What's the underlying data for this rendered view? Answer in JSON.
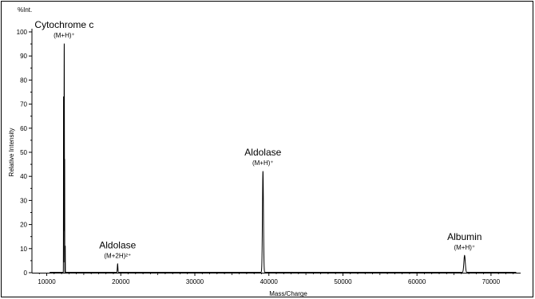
{
  "chart_data": {
    "type": "line",
    "ylabel_top": "%Int.",
    "ylabel": "Relative Intensity",
    "xlabel": "Mass/Charge",
    "xlim": [
      8000,
      74000
    ],
    "ylim": [
      0,
      100
    ],
    "x_ticks": [
      10000,
      20000,
      30000,
      40000,
      50000,
      60000,
      70000
    ],
    "y_ticks": [
      0,
      10,
      20,
      30,
      40,
      50,
      60,
      70,
      80,
      90,
      100
    ],
    "peaks": [
      {
        "name": "Cytochrome c",
        "ion": "(M+H)⁺",
        "x": 12360,
        "y": 95,
        "width": 60
      },
      {
        "name": "Aldolase",
        "ion": "(M+2H)²⁺",
        "x": 19570,
        "y": 3.5,
        "width": 90
      },
      {
        "name": "Aldolase",
        "ion": "(M+H)⁺",
        "x": 39200,
        "y": 42,
        "width": 160
      },
      {
        "name": "Albumin",
        "ion": "(M+H)⁺",
        "x": 66430,
        "y": 7,
        "width": 220
      }
    ],
    "minor_peaks": [
      {
        "x": 12270,
        "y": 73,
        "width": 25
      },
      {
        "x": 12420,
        "y": 47,
        "width": 20
      },
      {
        "x": 12500,
        "y": 11,
        "width": 20
      }
    ],
    "series": [
      {
        "color": "#000000"
      }
    ]
  }
}
